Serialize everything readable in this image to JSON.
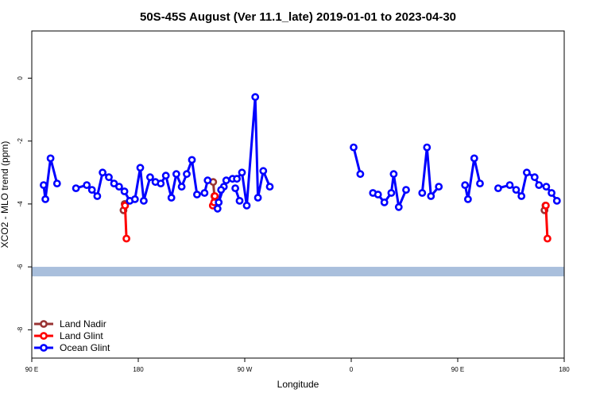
{
  "chart_data": {
    "type": "line",
    "title": "50S-45S August (Ver 11.1_late)   2019-01-01 to 2023-04-30",
    "xlabel": "Longitude",
    "ylabel": "XCO2 - MLO trend (ppm)",
    "xlim": [
      -90,
      180
    ],
    "ylim": [
      -8.9,
      1.5
    ],
    "x_ticks": [
      {
        "value": -90,
        "label": "90 E"
      },
      {
        "value": -36,
        "label": "180"
      },
      {
        "value": 18,
        "label": "90 W"
      },
      {
        "value": 72,
        "label": "0"
      },
      {
        "value": 126,
        "label": "90 E"
      },
      {
        "value": 180,
        "label": "180"
      }
    ],
    "y_ticks": [
      {
        "value": 0,
        "label": "0"
      },
      {
        "value": -2,
        "label": "-2"
      },
      {
        "value": -4,
        "label": "-4"
      },
      {
        "value": -6,
        "label": "-6"
      },
      {
        "value": -8,
        "label": "-8"
      }
    ],
    "grid": false,
    "legend_position": "bottom-left",
    "land_band": {
      "y_center": -6.15,
      "color": "#a9bfdc"
    },
    "series": [
      {
        "name": "Land Nadir",
        "color": "#993333",
        "segments": [
          [
            [
              -43.5,
              -4.2
            ],
            [
              -42.9,
              -4.0
            ]
          ],
          [
            [
              2.0,
              -3.3
            ],
            [
              2.6,
              -3.75
            ],
            [
              2.9,
              -3.9
            ]
          ],
          [
            [
              170.0,
              -4.2
            ],
            [
              170.5,
              -4.05
            ]
          ]
        ]
      },
      {
        "name": "Land Glint",
        "color": "#ff0000",
        "segments": [
          [
            [
              -42.7,
              -4.05
            ],
            [
              -42.0,
              -5.1
            ]
          ],
          [
            [
              1.8,
              -4.05
            ],
            [
              2.5,
              -3.95
            ],
            [
              2.8,
              -3.75
            ]
          ],
          [
            [
              170.7,
              -4.05
            ],
            [
              171.5,
              -5.1
            ]
          ]
        ]
      },
      {
        "name": "Ocean Glint",
        "color": "#0000ff",
        "segments": [
          [
            [
              -84.0,
              -3.4
            ],
            [
              -83.1,
              -3.85
            ],
            [
              -80.5,
              -2.55
            ],
            [
              -77.2,
              -3.35
            ]
          ],
          [
            [
              -67.6,
              -3.5
            ],
            [
              -62.1,
              -3.4
            ],
            [
              -59.5,
              -3.55
            ],
            [
              -56.8,
              -3.75
            ],
            [
              -54.1,
              -3.0
            ],
            [
              -50.9,
              -3.15
            ],
            [
              -48.3,
              -3.35
            ],
            [
              -45.7,
              -3.45
            ],
            [
              -43.0,
              -3.6
            ],
            [
              -40.3,
              -3.9
            ],
            [
              -37.7,
              -3.85
            ],
            [
              -35.0,
              -2.85
            ],
            [
              -33.2,
              -3.9
            ],
            [
              -30.0,
              -3.15
            ],
            [
              -27.3,
              -3.3
            ],
            [
              -24.6,
              -3.35
            ],
            [
              -22.0,
              -3.1
            ],
            [
              -19.2,
              -3.8
            ],
            [
              -16.7,
              -3.05
            ],
            [
              -14.0,
              -3.45
            ],
            [
              -11.4,
              -3.05
            ],
            [
              -8.8,
              -2.6
            ],
            [
              -6.2,
              -3.7
            ],
            [
              -2.4,
              -3.65
            ],
            [
              -0.8,
              -3.25
            ]
          ],
          [
            [
              4.8,
              -3.95
            ],
            [
              7.4,
              -3.45
            ]
          ],
          [
            [
              13.2,
              -3.5
            ],
            [
              15.4,
              -3.9
            ]
          ],
          [
            [
              4.2,
              -4.15
            ],
            [
              6.0,
              -3.55
            ],
            [
              8.6,
              -3.25
            ],
            [
              11.8,
              -3.2
            ],
            [
              14.0,
              -3.2
            ],
            [
              16.6,
              -3.0
            ],
            [
              19.0,
              -4.05
            ],
            [
              23.3,
              -0.6
            ],
            [
              24.7,
              -3.8
            ],
            [
              27.4,
              -2.95
            ],
            [
              30.7,
              -3.45
            ]
          ],
          [
            [
              73.2,
              -2.2
            ],
            [
              76.6,
              -3.05
            ]
          ],
          [
            [
              83.0,
              -3.65
            ],
            [
              85.6,
              -3.7
            ],
            [
              88.8,
              -3.95
            ],
            [
              92.3,
              -3.65
            ],
            [
              93.5,
              -3.05
            ],
            [
              96.1,
              -4.1
            ],
            [
              99.8,
              -3.55
            ]
          ],
          [
            [
              108.0,
              -3.65
            ],
            [
              110.4,
              -2.2
            ],
            [
              112.4,
              -3.75
            ],
            [
              116.4,
              -3.45
            ]
          ],
          [
            [
              129.7,
              -3.4
            ],
            [
              131.2,
              -3.85
            ],
            [
              134.4,
              -2.55
            ],
            [
              137.3,
              -3.35
            ]
          ],
          [
            [
              146.5,
              -3.5
            ],
            [
              152.4,
              -3.4
            ],
            [
              155.6,
              -3.55
            ],
            [
              158.3,
              -3.75
            ],
            [
              161.0,
              -3.0
            ],
            [
              165.0,
              -3.15
            ],
            [
              167.2,
              -3.4
            ],
            [
              170.9,
              -3.45
            ],
            [
              173.6,
              -3.65
            ],
            [
              176.3,
              -3.9
            ]
          ]
        ]
      }
    ]
  }
}
